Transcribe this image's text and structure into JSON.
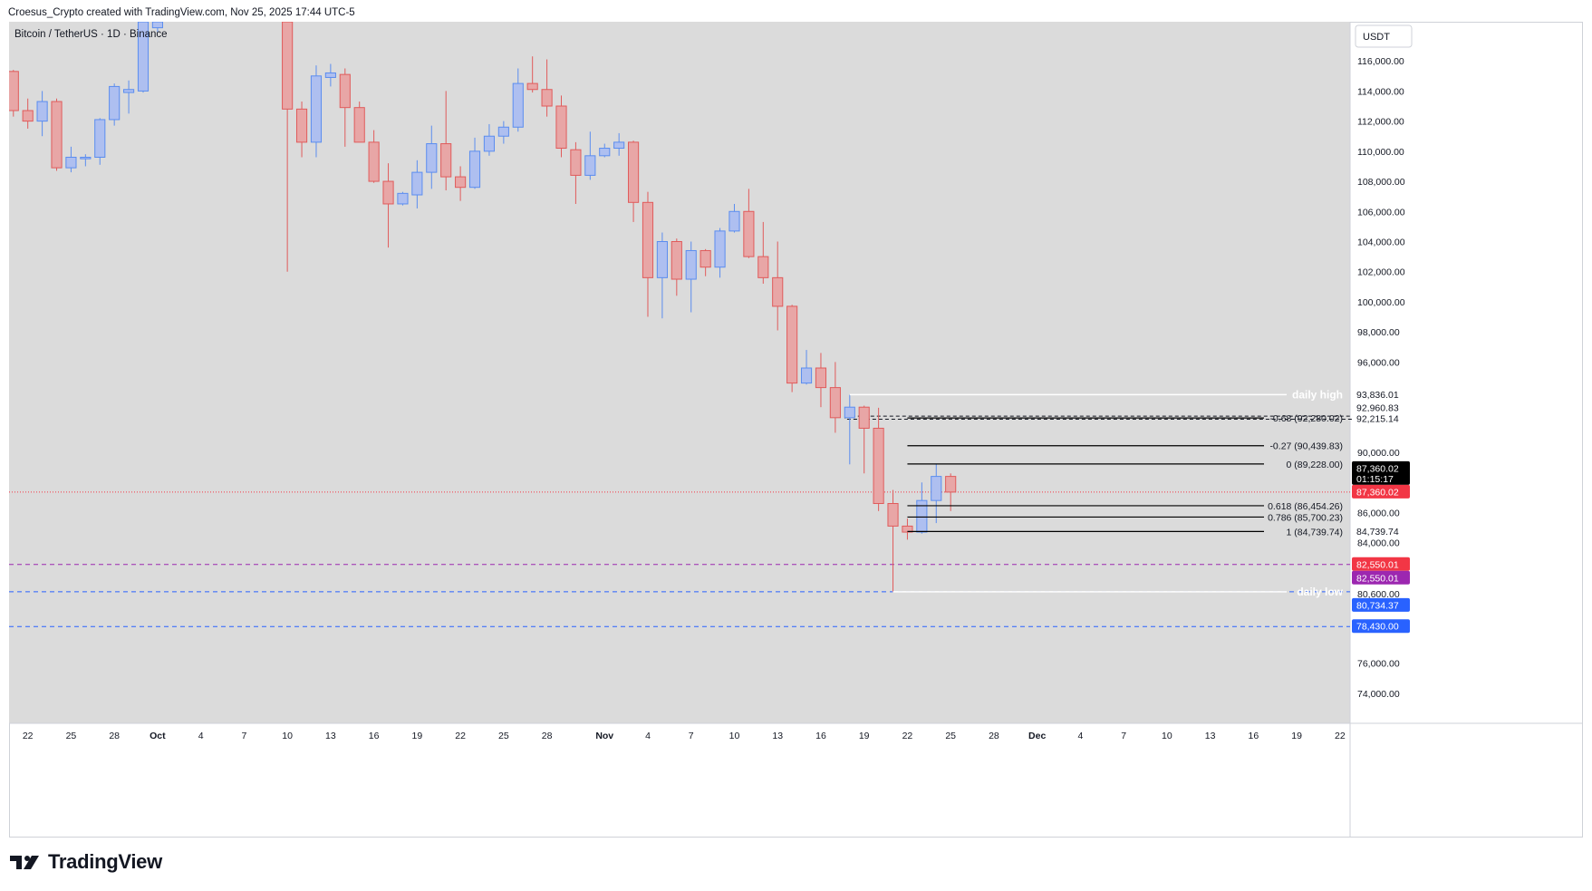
{
  "header": {
    "text": "Croesus_Crypto created with TradingView.com, Nov 25, 2025 17:44 UTC-5"
  },
  "chart_title": "Bitcoin / TetherUS · 1D · Binance",
  "currency_button": "USDT",
  "brand": {
    "name": "TradingView"
  },
  "colors": {
    "background": "#dbdbdb",
    "bull": "#5b8def",
    "bear": "#e05b5b",
    "bull_fill": "#aebff0",
    "bear_fill": "#e8a6a6",
    "current_price": "#f23645",
    "purple": "#9c27b0",
    "blue_level": "#2962ff"
  },
  "chart_data": {
    "type": "candlestick",
    "title": "Bitcoin / TetherUS · 1D · Binance",
    "interval": "1D",
    "exchange": "Binance",
    "y_unit": "USDT",
    "ylim": [
      72000,
      118600
    ],
    "x_range": [
      "2025-09-21",
      "2025-12-23"
    ],
    "grid": false,
    "x_ticks": [
      {
        "date": "2025-09-22",
        "label": "22"
      },
      {
        "date": "2025-09-25",
        "label": "25"
      },
      {
        "date": "2025-09-28",
        "label": "28"
      },
      {
        "date": "2025-10-01",
        "label": "Oct"
      },
      {
        "date": "2025-10-04",
        "label": "4"
      },
      {
        "date": "2025-10-07",
        "label": "7"
      },
      {
        "date": "2025-10-10",
        "label": "10"
      },
      {
        "date": "2025-10-13",
        "label": "13"
      },
      {
        "date": "2025-10-16",
        "label": "16"
      },
      {
        "date": "2025-10-19",
        "label": "19"
      },
      {
        "date": "2025-10-22",
        "label": "22"
      },
      {
        "date": "2025-10-25",
        "label": "25"
      },
      {
        "date": "2025-10-28",
        "label": "28"
      },
      {
        "date": "2025-11-01",
        "label": "Nov"
      },
      {
        "date": "2025-11-04",
        "label": "4"
      },
      {
        "date": "2025-11-07",
        "label": "7"
      },
      {
        "date": "2025-11-10",
        "label": "10"
      },
      {
        "date": "2025-11-13",
        "label": "13"
      },
      {
        "date": "2025-11-16",
        "label": "16"
      },
      {
        "date": "2025-11-19",
        "label": "19"
      },
      {
        "date": "2025-11-22",
        "label": "22"
      },
      {
        "date": "2025-11-25",
        "label": "25"
      },
      {
        "date": "2025-11-28",
        "label": "28"
      },
      {
        "date": "2025-12-01",
        "label": "Dec"
      },
      {
        "date": "2025-12-04",
        "label": "4"
      },
      {
        "date": "2025-12-07",
        "label": "7"
      },
      {
        "date": "2025-12-10",
        "label": "10"
      },
      {
        "date": "2025-12-13",
        "label": "13"
      },
      {
        "date": "2025-12-16",
        "label": "16"
      },
      {
        "date": "2025-12-19",
        "label": "19"
      },
      {
        "date": "2025-12-22",
        "label": "22"
      }
    ],
    "y_ticks": [
      {
        "value": 116000,
        "label": "116,000.00"
      },
      {
        "value": 114000,
        "label": "114,000.00"
      },
      {
        "value": 112000,
        "label": "112,000.00"
      },
      {
        "value": 110000,
        "label": "110,000.00"
      },
      {
        "value": 108000,
        "label": "108,000.00"
      },
      {
        "value": 106000,
        "label": "106,000.00"
      },
      {
        "value": 104000,
        "label": "104,000.00"
      },
      {
        "value": 102000,
        "label": "102,000.00"
      },
      {
        "value": 100000,
        "label": "100,000.00"
      },
      {
        "value": 98000,
        "label": "98,000.00"
      },
      {
        "value": 96000,
        "label": "96,000.00"
      },
      {
        "value": 90000,
        "label": "90,000.00"
      },
      {
        "value": 86000,
        "label": "86,000.00"
      },
      {
        "value": 84000,
        "label": "84,000.00"
      },
      {
        "value": 80600,
        "label": "80,600.00"
      },
      {
        "value": 76000,
        "label": "76,000.00"
      },
      {
        "value": 74000,
        "label": "74,000.00"
      }
    ],
    "candles": [
      {
        "date": "2025-09-21",
        "o": 115300,
        "h": 115400,
        "l": 112300,
        "c": 112700
      },
      {
        "date": "2025-09-22",
        "o": 112700,
        "h": 113500,
        "l": 111500,
        "c": 112000
      },
      {
        "date": "2025-09-23",
        "o": 112000,
        "h": 114000,
        "l": 111000,
        "c": 113300
      },
      {
        "date": "2025-09-24",
        "o": 113300,
        "h": 113500,
        "l": 108700,
        "c": 108900
      },
      {
        "date": "2025-09-25",
        "o": 108900,
        "h": 110300,
        "l": 108600,
        "c": 109600
      },
      {
        "date": "2025-09-26",
        "o": 109500,
        "h": 109800,
        "l": 109000,
        "c": 109600
      },
      {
        "date": "2025-09-27",
        "o": 109600,
        "h": 112200,
        "l": 109100,
        "c": 112100
      },
      {
        "date": "2025-09-28",
        "o": 112100,
        "h": 114500,
        "l": 111700,
        "c": 114300
      },
      {
        "date": "2025-09-29",
        "o": 113900,
        "h": 114700,
        "l": 112500,
        "c": 114100
      },
      {
        "date": "2025-09-30",
        "o": 114000,
        "h": 118600,
        "l": 113900,
        "c": 118600
      },
      {
        "date": "2025-10-01",
        "o": 118200,
        "h": 118600,
        "l": 117900,
        "c": 118600
      },
      {
        "date": "2025-10-10",
        "o": 118600,
        "h": 118600,
        "l": 102000,
        "c": 112800
      },
      {
        "date": "2025-10-11",
        "o": 112800,
        "h": 113300,
        "l": 109600,
        "c": 110600
      },
      {
        "date": "2025-10-12",
        "o": 110600,
        "h": 115700,
        "l": 109600,
        "c": 115000
      },
      {
        "date": "2025-10-13",
        "o": 114900,
        "h": 115800,
        "l": 114300,
        "c": 115200
      },
      {
        "date": "2025-10-14",
        "o": 115100,
        "h": 115500,
        "l": 110300,
        "c": 112900
      },
      {
        "date": "2025-10-15",
        "o": 112900,
        "h": 113300,
        "l": 110600,
        "c": 110600
      },
      {
        "date": "2025-10-16",
        "o": 110600,
        "h": 111400,
        "l": 107900,
        "c": 108000
      },
      {
        "date": "2025-10-17",
        "o": 108000,
        "h": 109200,
        "l": 103600,
        "c": 106500
      },
      {
        "date": "2025-10-18",
        "o": 106500,
        "h": 107300,
        "l": 106400,
        "c": 107200
      },
      {
        "date": "2025-10-19",
        "o": 107100,
        "h": 109400,
        "l": 106200,
        "c": 108600
      },
      {
        "date": "2025-10-20",
        "o": 108600,
        "h": 111700,
        "l": 107500,
        "c": 110500
      },
      {
        "date": "2025-10-21",
        "o": 110500,
        "h": 114000,
        "l": 107400,
        "c": 108300
      },
      {
        "date": "2025-10-22",
        "o": 108300,
        "h": 109000,
        "l": 106700,
        "c": 107600
      },
      {
        "date": "2025-10-23",
        "o": 107600,
        "h": 110900,
        "l": 107500,
        "c": 110000
      },
      {
        "date": "2025-10-24",
        "o": 110000,
        "h": 111800,
        "l": 109700,
        "c": 111000
      },
      {
        "date": "2025-10-25",
        "o": 111000,
        "h": 112000,
        "l": 110500,
        "c": 111600
      },
      {
        "date": "2025-10-26",
        "o": 111600,
        "h": 115500,
        "l": 111300,
        "c": 114500
      },
      {
        "date": "2025-10-27",
        "o": 114500,
        "h": 116300,
        "l": 113900,
        "c": 114100
      },
      {
        "date": "2025-10-28",
        "o": 114100,
        "h": 116100,
        "l": 112300,
        "c": 113000
      },
      {
        "date": "2025-10-29",
        "o": 113000,
        "h": 113700,
        "l": 109600,
        "c": 110200
      },
      {
        "date": "2025-10-30",
        "o": 110100,
        "h": 110600,
        "l": 106500,
        "c": 108400
      },
      {
        "date": "2025-10-31",
        "o": 108400,
        "h": 111300,
        "l": 108100,
        "c": 109700
      },
      {
        "date": "2025-11-01",
        "o": 109700,
        "h": 110500,
        "l": 109600,
        "c": 110200
      },
      {
        "date": "2025-11-02",
        "o": 110200,
        "h": 111200,
        "l": 109700,
        "c": 110600
      },
      {
        "date": "2025-11-03",
        "o": 110600,
        "h": 110700,
        "l": 105300,
        "c": 106600
      },
      {
        "date": "2025-11-04",
        "o": 106600,
        "h": 107300,
        "l": 99000,
        "c": 101600
      },
      {
        "date": "2025-11-05",
        "o": 101600,
        "h": 104600,
        "l": 98900,
        "c": 104000
      },
      {
        "date": "2025-11-06",
        "o": 104000,
        "h": 104200,
        "l": 100400,
        "c": 101500
      },
      {
        "date": "2025-11-07",
        "o": 101500,
        "h": 104000,
        "l": 99300,
        "c": 103400
      },
      {
        "date": "2025-11-08",
        "o": 103400,
        "h": 103500,
        "l": 101700,
        "c": 102300
      },
      {
        "date": "2025-11-09",
        "o": 102300,
        "h": 104900,
        "l": 101600,
        "c": 104700
      },
      {
        "date": "2025-11-10",
        "o": 104700,
        "h": 106500,
        "l": 104600,
        "c": 106000
      },
      {
        "date": "2025-11-11",
        "o": 106000,
        "h": 107500,
        "l": 102900,
        "c": 103000
      },
      {
        "date": "2025-11-12",
        "o": 103000,
        "h": 105300,
        "l": 101200,
        "c": 101600
      },
      {
        "date": "2025-11-13",
        "o": 101600,
        "h": 104000,
        "l": 98100,
        "c": 99700
      },
      {
        "date": "2025-11-14",
        "o": 99700,
        "h": 99800,
        "l": 94000,
        "c": 94600
      },
      {
        "date": "2025-11-15",
        "o": 94600,
        "h": 96800,
        "l": 94500,
        "c": 95600
      },
      {
        "date": "2025-11-16",
        "o": 95600,
        "h": 96600,
        "l": 93000,
        "c": 94300
      },
      {
        "date": "2025-11-17",
        "o": 94300,
        "h": 96000,
        "l": 91300,
        "c": 92300
      },
      {
        "date": "2025-11-18",
        "o": 92300,
        "h": 93836,
        "l": 89200,
        "c": 93000
      },
      {
        "date": "2025-11-19",
        "o": 93000,
        "h": 93100,
        "l": 88600,
        "c": 91600
      },
      {
        "date": "2025-11-20",
        "o": 91600,
        "h": 92960,
        "l": 86100,
        "c": 86600
      },
      {
        "date": "2025-11-21",
        "o": 86600,
        "h": 87500,
        "l": 80734,
        "c": 85100
      },
      {
        "date": "2025-11-22",
        "o": 85100,
        "h": 85600,
        "l": 84200,
        "c": 84700
      },
      {
        "date": "2025-11-23",
        "o": 84700,
        "h": 88000,
        "l": 84600,
        "c": 86800
      },
      {
        "date": "2025-11-24",
        "o": 86800,
        "h": 89228,
        "l": 85300,
        "c": 88400
      },
      {
        "date": "2025-11-25",
        "o": 88400,
        "h": 88600,
        "l": 86100,
        "c": 87360
      }
    ],
    "horizontal_levels": [
      {
        "value": 87360.02,
        "style": "dotted",
        "color": "#f23645",
        "name": "current price"
      },
      {
        "value": 82550.01,
        "style": "dashed",
        "color": "#9c27b0"
      },
      {
        "value": 80734.37,
        "style": "dashed",
        "color": "#2962ff"
      },
      {
        "value": 78430.0,
        "style": "dashed",
        "color": "#2962ff"
      }
    ],
    "range_lines": [
      {
        "value": 93836.01,
        "start": "2025-11-18",
        "label": "daily high"
      },
      {
        "value": 80734.37,
        "start": "2025-11-21",
        "label": "daily low"
      }
    ],
    "fib_levels": [
      {
        "ratio": "-0.68",
        "value": 92280.02,
        "label": "-0.68 (92,280.02)"
      },
      {
        "ratio": "-0.27",
        "value": 90439.83,
        "label": "-0.27 (90,439.83)"
      },
      {
        "ratio": "0",
        "value": 89228.0,
        "label": "0 (89,228.00)"
      },
      {
        "ratio": "0.618",
        "value": 86454.26,
        "label": "0.618 (86,454.26)"
      },
      {
        "ratio": "0.786",
        "value": 85700.23,
        "label": "0.786 (85,700.23)"
      },
      {
        "ratio": "1",
        "value": 84739.74,
        "label": "1 (84,739.74)"
      }
    ],
    "dashed_box": {
      "top": 92400,
      "bottom": 92200,
      "start": "2025-11-18",
      "end": "2025-11-25"
    },
    "price_labels": [
      {
        "value": 93836.01,
        "label": "93,836.01",
        "bg": "#ffffff",
        "fg": "#131722"
      },
      {
        "value": 92960.83,
        "label": "92,960.83",
        "bg": "#ffffff",
        "fg": "#131722"
      },
      {
        "value": 92215.14,
        "label": "92,215.14",
        "bg": "#ffffff",
        "fg": "#131722"
      },
      {
        "value": 87360.02,
        "label": "87,360.02",
        "bg": "#000000",
        "fg": "#ffffff",
        "sub": "01:15:17",
        "pos": "top"
      },
      {
        "value": 87360.02,
        "label": "87,360.02",
        "bg": "#f23645",
        "fg": "#ffffff"
      },
      {
        "value": 84739.74,
        "label": "84,739.74",
        "bg": "#ffffff",
        "fg": "#131722"
      },
      {
        "value": 82550.01,
        "label": "82,550.01",
        "bg": "#f23645",
        "fg": "#ffffff"
      },
      {
        "value": 82550.01,
        "label": "82,550.01",
        "bg": "#9c27b0",
        "fg": "#ffffff",
        "pos": "below"
      },
      {
        "value": 80734.37,
        "label": "80,734.37",
        "bg": "#2962ff",
        "fg": "#ffffff",
        "pos": "below"
      },
      {
        "value": 78430.0,
        "label": "78,430.00",
        "bg": "#2962ff",
        "fg": "#ffffff"
      }
    ]
  }
}
